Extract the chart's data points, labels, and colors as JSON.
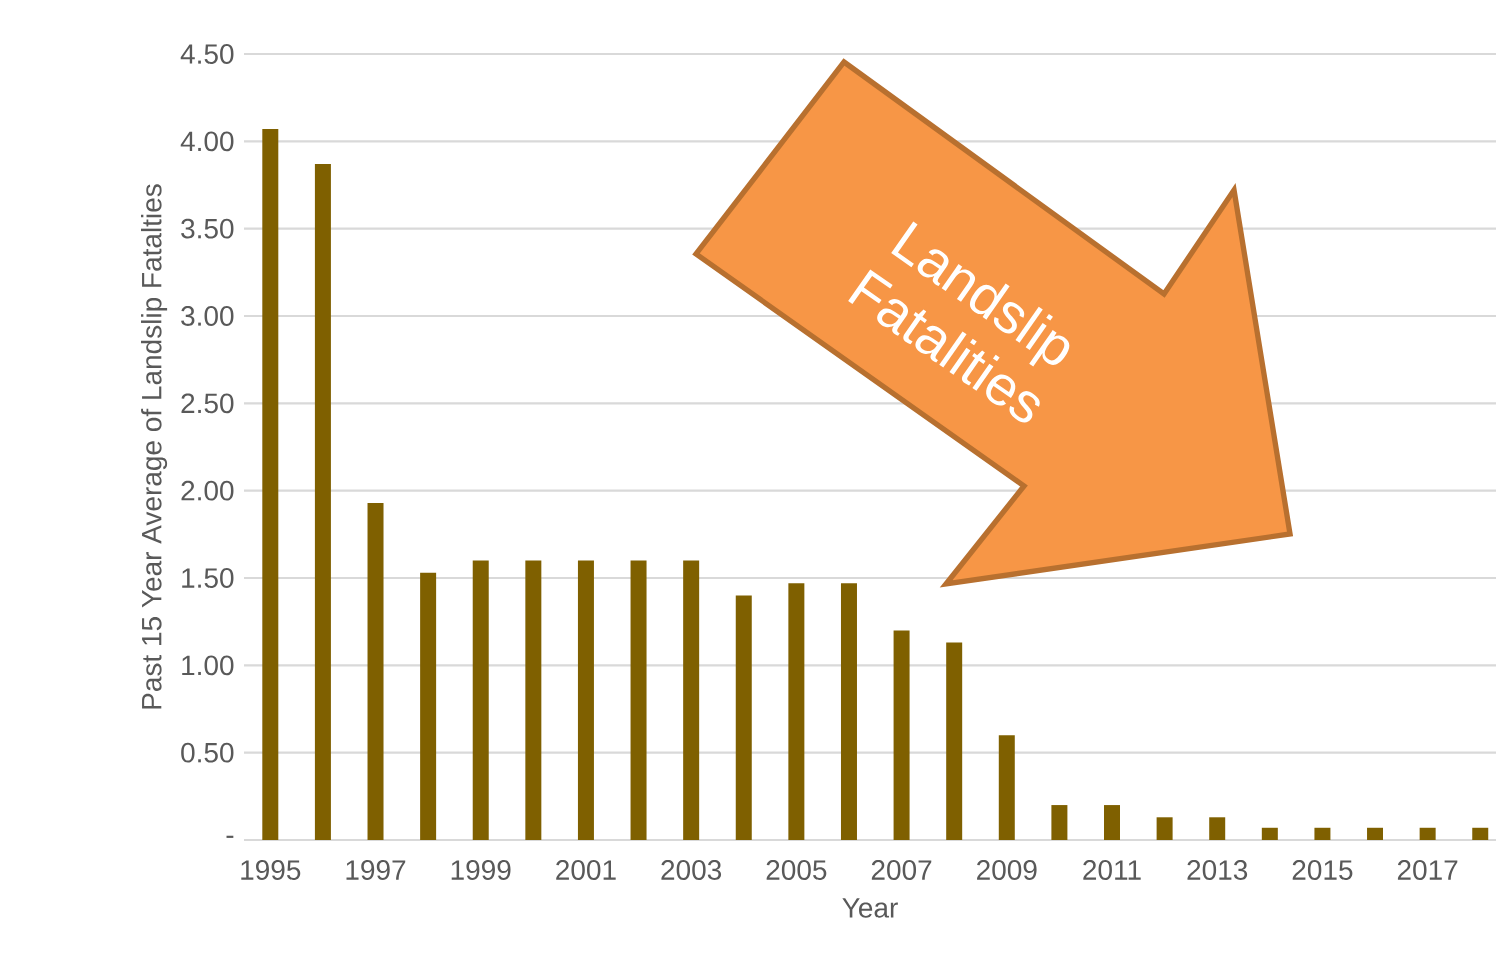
{
  "chart_data": {
    "type": "bar",
    "xlabel": "Year",
    "ylabel": "Past 15 Year Average of Landslip Fatalties",
    "categories": [
      "1995",
      null,
      "1997",
      null,
      "1999",
      null,
      "2001",
      null,
      "2003",
      null,
      "2005",
      null,
      "2007",
      null,
      "2009",
      null,
      "2011",
      null,
      "2013",
      null,
      "2015",
      null,
      "2017",
      null
    ],
    "values": [
      4.07,
      3.87,
      1.93,
      1.53,
      1.6,
      1.6,
      1.6,
      1.6,
      1.6,
      1.4,
      1.47,
      1.47,
      1.2,
      1.13,
      0.6,
      0.2,
      0.2,
      0.13,
      0.13,
      0.07,
      0.07,
      0.07,
      0.07,
      0.07
    ],
    "color": "#7f6000",
    "ylim": [
      0,
      4.5
    ],
    "yticks": [
      {
        "value": 0,
        "label": "-"
      },
      {
        "value": 0.5,
        "label": "0.50"
      },
      {
        "value": 1,
        "label": "1.00"
      },
      {
        "value": 1.5,
        "label": "1.50"
      },
      {
        "value": 2,
        "label": "2.00"
      },
      {
        "value": 2.5,
        "label": "2.50"
      },
      {
        "value": 3,
        "label": "3.00"
      },
      {
        "value": 3.5,
        "label": "3.50"
      },
      {
        "value": 4,
        "label": "4.00"
      },
      {
        "value": 4.5,
        "label": "4.50"
      }
    ],
    "grid": "y",
    "annotations": [
      "Landslip Fatalities"
    ]
  }
}
